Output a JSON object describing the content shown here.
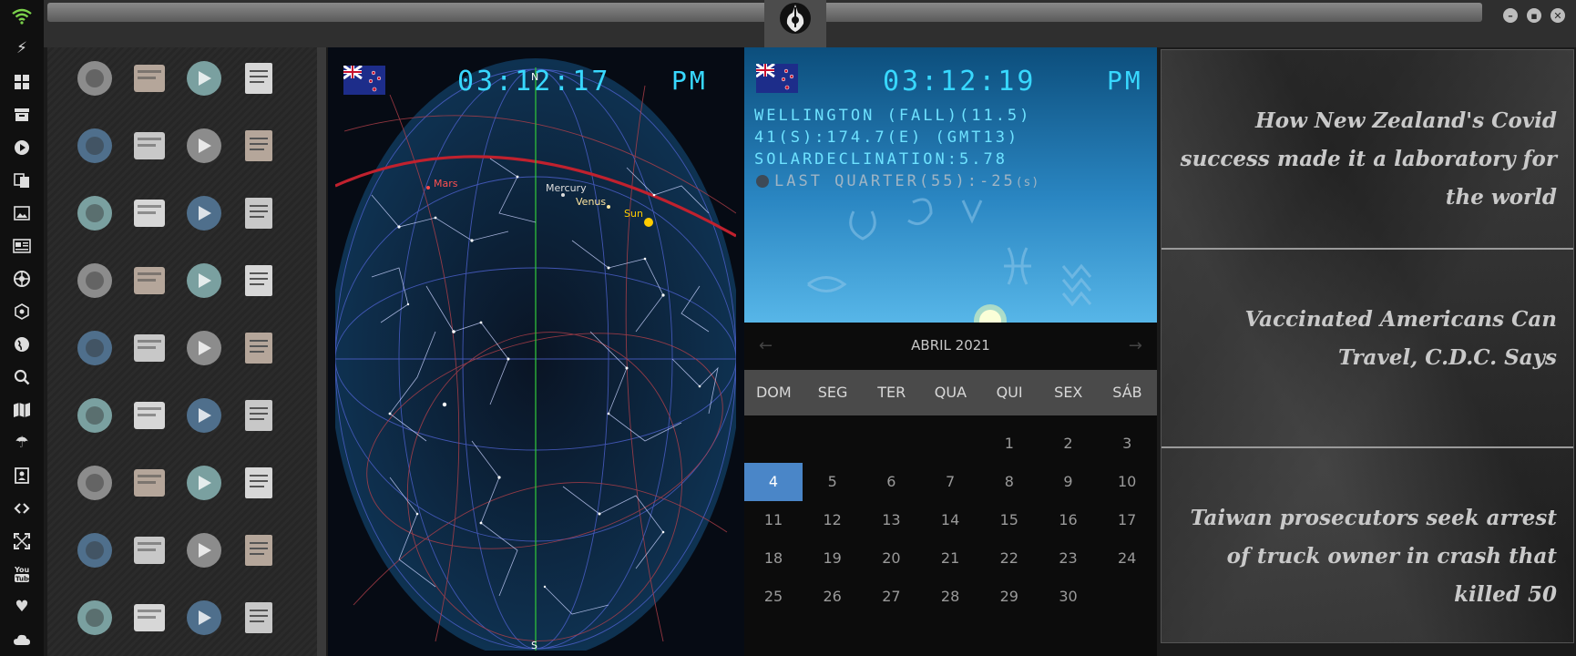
{
  "sky": {
    "time": "03:12:17",
    "ampm": "PM",
    "north": "N",
    "south": "S",
    "labels": {
      "mars": "Mars",
      "mercury": "Mercury",
      "venus": "Venus",
      "sun": "Sun"
    }
  },
  "astro": {
    "time": "03:12:19",
    "ampm": "PM",
    "location": "WELLINGTON (FALL)(11.5)",
    "coords": "41(S):174.7(E) (GMT13)",
    "solar": "SOLARDECLINATION:5.78",
    "moon": "LAST QUARTER(55):-25",
    "moon_suffix": "(s)"
  },
  "calendar": {
    "month": "ABRIL 2021",
    "prev": "←",
    "next": "→",
    "days": [
      "DOM",
      "SEG",
      "TER",
      "QUA",
      "QUI",
      "SEX",
      "SÁB"
    ],
    "weeks": [
      [
        "",
        "",
        "",
        "",
        "1",
        "2",
        "3"
      ],
      [
        "4",
        "5",
        "6",
        "7",
        "8",
        "9",
        "10"
      ],
      [
        "11",
        "12",
        "13",
        "14",
        "15",
        "16",
        "17"
      ],
      [
        "18",
        "19",
        "20",
        "21",
        "22",
        "23",
        "24"
      ],
      [
        "25",
        "26",
        "27",
        "28",
        "29",
        "30",
        ""
      ]
    ],
    "today": "4",
    "today_color": "#4a86c8"
  },
  "news": {
    "headlines": [
      "How New Zealand's Covid success made it a laboratory for the world",
      "Vaccinated Americans Can Travel, C.D.C. Says",
      "Taiwan prosecutors seek arrest of truck owner in crash that killed 50"
    ]
  },
  "dock": [
    "wifi-icon",
    "power-icon",
    "windows-icon",
    "archive-icon",
    "play-circle-icon",
    "translate-icon",
    "image-icon",
    "news-icon",
    "settings-wheel-icon",
    "network-icon",
    "globe-icon",
    "search-icon",
    "map-icon",
    "umbrella-icon",
    "contact-icon",
    "link-icon",
    "expand-icon",
    "youtube-icon",
    "heart-icon",
    "cloud-icon"
  ],
  "launcher_icons": [
    "warning-icon",
    "yandex-icon",
    "magnifier-icon",
    "hourglass-icon",
    "arrow-app-icon",
    "terminal-icon",
    "web-browser-icon",
    "cabinet-icon",
    "window-icon",
    "spacebar-icon",
    "cloud-lock-icon",
    "github-icon",
    "starfleet-icon",
    "death-star-icon",
    "wikipedia-icon",
    "world-map-icon",
    "library-icon",
    "document-viewer-icon",
    "music-icon",
    "video-icon",
    "play-button-icon",
    "video-player-icon",
    "close-circle-icon",
    "astronaut-icon",
    "c3po-icon",
    "translator-icon",
    "calculator-icon",
    "camera-app-icon",
    "chemistry-icon",
    "formula-icon",
    "binary-icon",
    "list-app-icon",
    "text-file-icon",
    "photo-icon",
    "presentation-icon",
    "vscode-icon"
  ],
  "colors": {
    "accent_led": "#38d8ff",
    "headline": "#c9c9c9"
  }
}
